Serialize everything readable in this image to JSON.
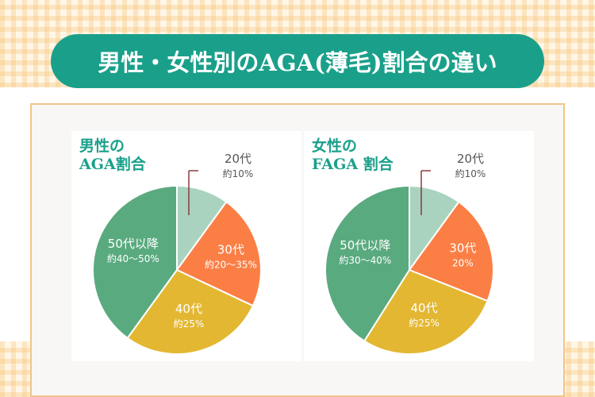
{
  "header": {
    "title": "男性・女性別のAGA(薄毛)割合の違い"
  },
  "colors": {
    "title_bg": "#1aa08a",
    "twenties": "#a9d3bf",
    "thirties": "#fb7f45",
    "forties": "#e3b732",
    "fifties": "#5aaa80",
    "callout_line": "#8a3a3a"
  },
  "chart_data": [
    {
      "type": "pie",
      "title_lines": [
        "男性の",
        "AGA割合"
      ],
      "slices": [
        {
          "label": "20代",
          "value_text": "約10%",
          "value": 10
        },
        {
          "label": "30代",
          "value_text": "約20～35%",
          "value": 22
        },
        {
          "label": "40代",
          "value_text": "約25%",
          "value": 28
        },
        {
          "label": "50代以降",
          "value_text": "約40～50%",
          "value": 40
        }
      ]
    },
    {
      "type": "pie",
      "title_lines": [
        "女性の",
        "FAGA 割合"
      ],
      "slices": [
        {
          "label": "20代",
          "value_text": "約10%",
          "value": 10
        },
        {
          "label": "30代",
          "value_text": "20%",
          "value": 21
        },
        {
          "label": "40代",
          "value_text": "約25%",
          "value": 28
        },
        {
          "label": "50代以降",
          "value_text": "約30～40%",
          "value": 41
        }
      ]
    }
  ]
}
